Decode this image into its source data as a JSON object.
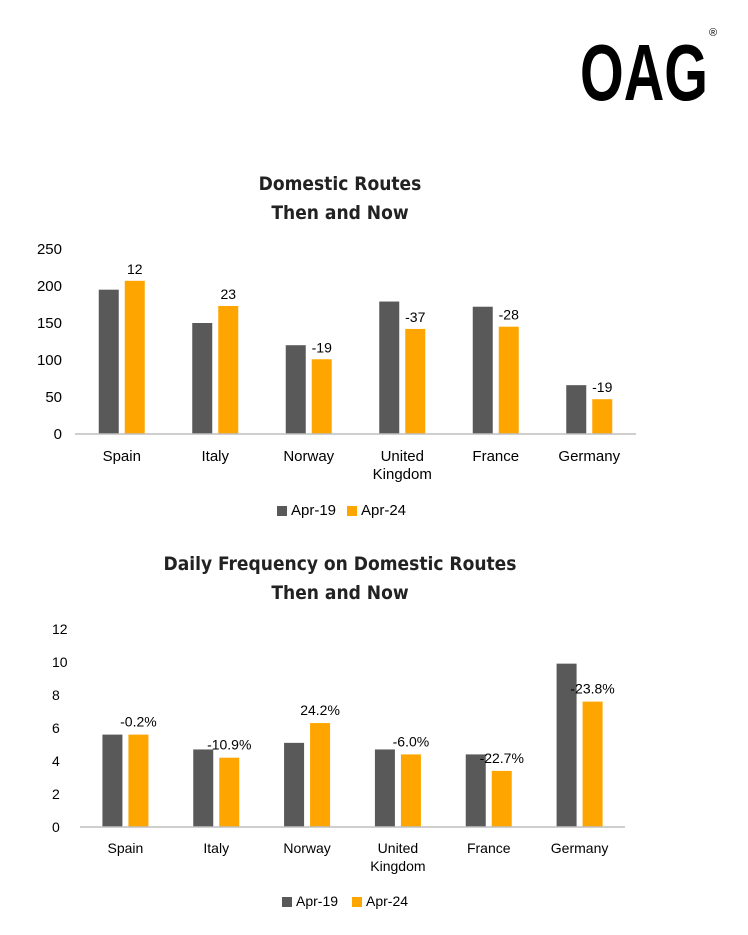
{
  "logo": {
    "text": "OAG",
    "mark": "®"
  },
  "colors": {
    "apr19": "#595959",
    "apr24": "#FFA500",
    "axis": "#BFBFBF",
    "text": "#000000",
    "title": "#222222"
  },
  "chart_data": [
    {
      "type": "bar",
      "title": [
        "Domestic Routes",
        "Then and Now"
      ],
      "categories": [
        [
          "Spain"
        ],
        [
          "Italy"
        ],
        [
          "Norway"
        ],
        [
          "United",
          "Kingdom"
        ],
        [
          "France"
        ],
        [
          "Germany"
        ]
      ],
      "series": [
        {
          "name": "Apr-19",
          "values": [
            195,
            150,
            120,
            179,
            172,
            66
          ]
        },
        {
          "name": "Apr-24",
          "values": [
            207,
            173,
            101,
            142,
            145,
            47
          ]
        }
      ],
      "data_labels": [
        "12",
        "23",
        "-19",
        "-37",
        "-28",
        "-19"
      ],
      "ylim": [
        0,
        250
      ],
      "yticks": [
        "0",
        "50",
        "100",
        "150",
        "200",
        "250"
      ],
      "grid": false,
      "legend": "bottom"
    },
    {
      "type": "bar",
      "title": [
        "Daily Frequency on Domestic Routes",
        "Then and Now"
      ],
      "categories": [
        [
          "Spain"
        ],
        [
          "Italy"
        ],
        [
          "Norway"
        ],
        [
          "United",
          "Kingdom"
        ],
        [
          "France"
        ],
        [
          "Germany"
        ]
      ],
      "series": [
        {
          "name": "Apr-19",
          "values": [
            5.6,
            4.7,
            5.1,
            4.7,
            4.4,
            9.9
          ]
        },
        {
          "name": "Apr-24",
          "values": [
            5.6,
            4.2,
            6.3,
            4.4,
            3.4,
            7.6
          ]
        }
      ],
      "data_labels": [
        "-0.2%",
        "-10.9%",
        "24.2%",
        "-6.0%",
        "-22.7%",
        "-23.8%"
      ],
      "ylim": [
        0,
        12
      ],
      "yticks": [
        "0",
        "2",
        "4",
        "6",
        "8",
        "10",
        "12"
      ],
      "grid": false,
      "legend": "bottom"
    }
  ]
}
